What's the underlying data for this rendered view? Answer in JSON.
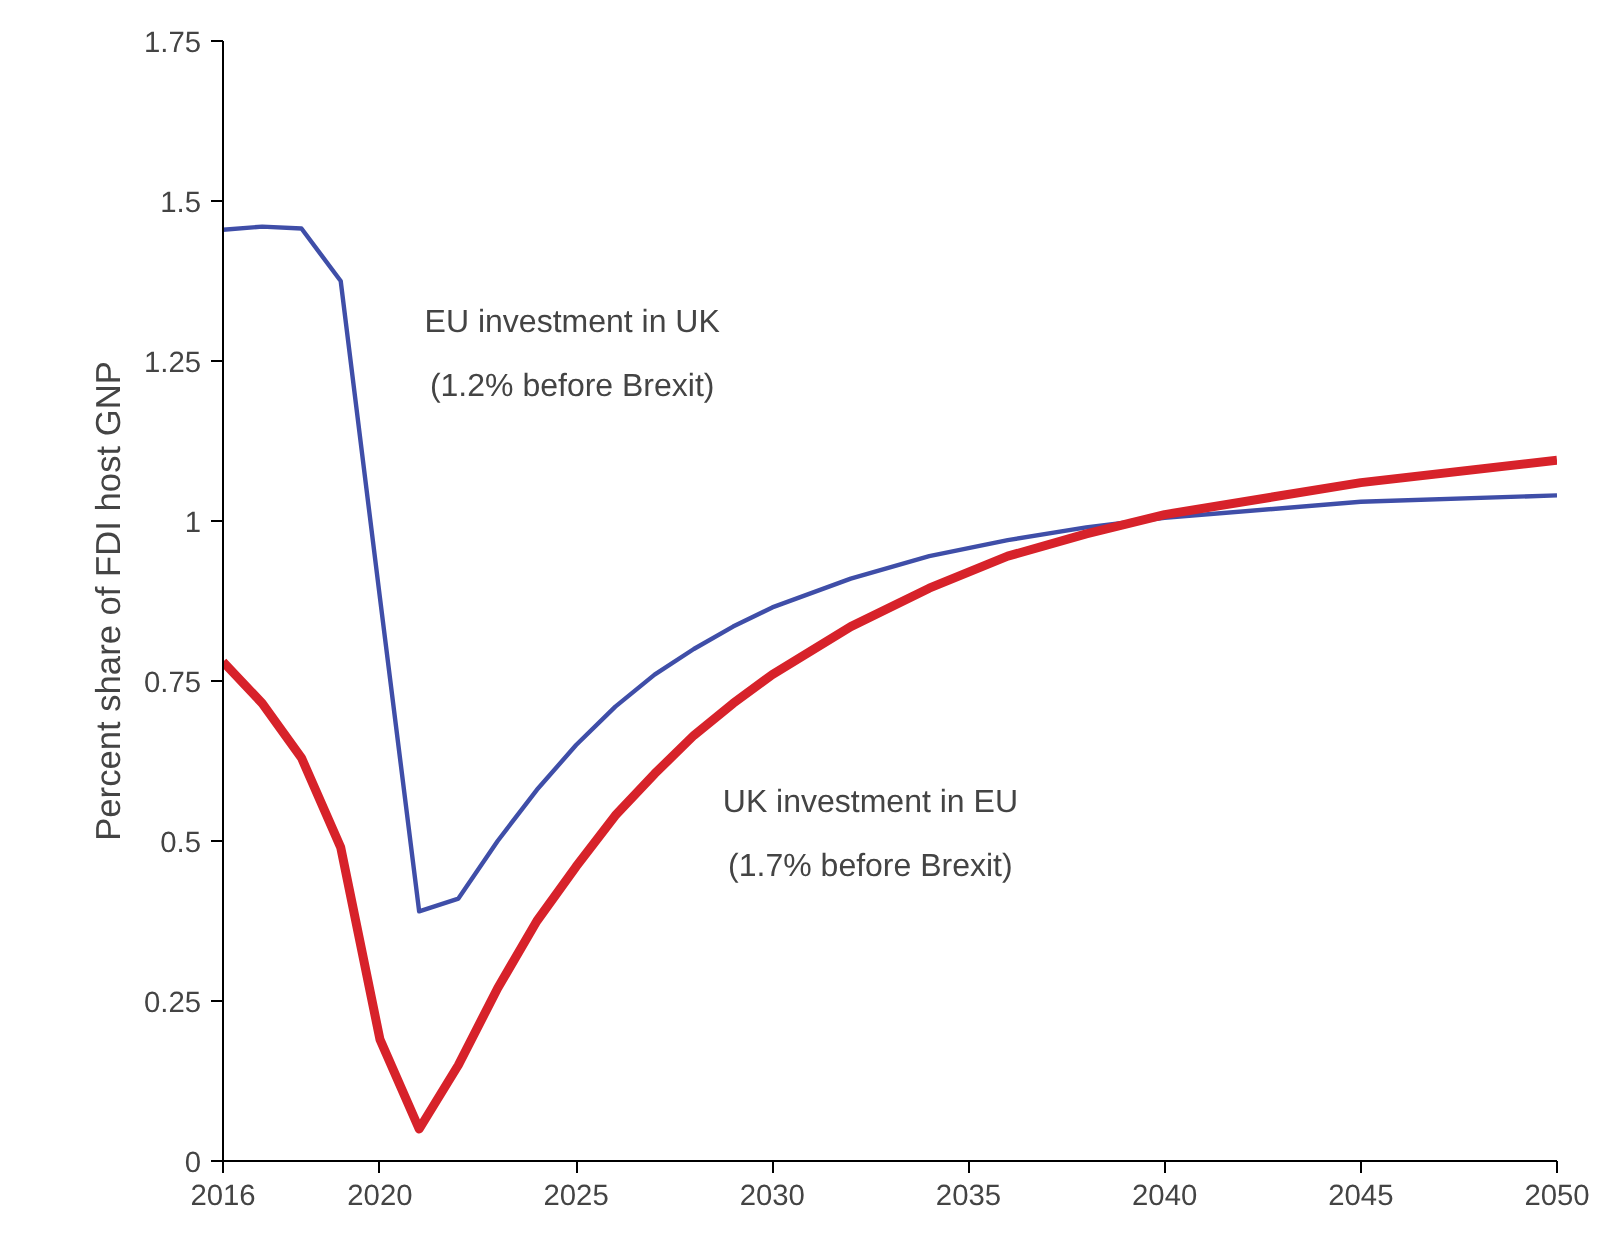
{
  "chart_data": {
    "type": "line",
    "ylabel": "Percent share of FDI host GNP",
    "x": [
      2016,
      2017,
      2018,
      2019,
      2020,
      2021,
      2022,
      2023,
      2024,
      2025,
      2026,
      2027,
      2028,
      2029,
      2030,
      2032,
      2034,
      2036,
      2038,
      2040,
      2045,
      2050
    ],
    "series": [
      {
        "name": "EU investment in UK",
        "color": "#3f4ea8",
        "values": [
          1.455,
          1.46,
          1.457,
          1.375,
          0.88,
          0.39,
          0.41,
          0.5,
          0.58,
          0.65,
          0.71,
          0.76,
          0.8,
          0.835,
          0.865,
          0.91,
          0.945,
          0.97,
          0.99,
          1.005,
          1.03,
          1.04
        ]
      },
      {
        "name": "UK investment in EU",
        "color": "#d7222a",
        "values": [
          0.78,
          0.715,
          0.63,
          0.49,
          0.19,
          0.05,
          0.15,
          0.27,
          0.375,
          0.46,
          0.54,
          0.605,
          0.665,
          0.715,
          0.76,
          0.835,
          0.895,
          0.945,
          0.98,
          1.01,
          1.06,
          1.095
        ]
      }
    ],
    "xlim": [
      2016,
      2050
    ],
    "xticks": [
      2016,
      2020,
      2025,
      2030,
      2035,
      2040,
      2045,
      2050
    ],
    "ylim": [
      0,
      1.75
    ],
    "yticks": [
      0,
      0.25,
      0.5,
      0.75,
      1,
      1.25,
      1.5,
      1.75
    ],
    "grid": false,
    "annotations": [
      "(1.2% before Brexit)",
      "(1.7% before Brexit)"
    ]
  }
}
